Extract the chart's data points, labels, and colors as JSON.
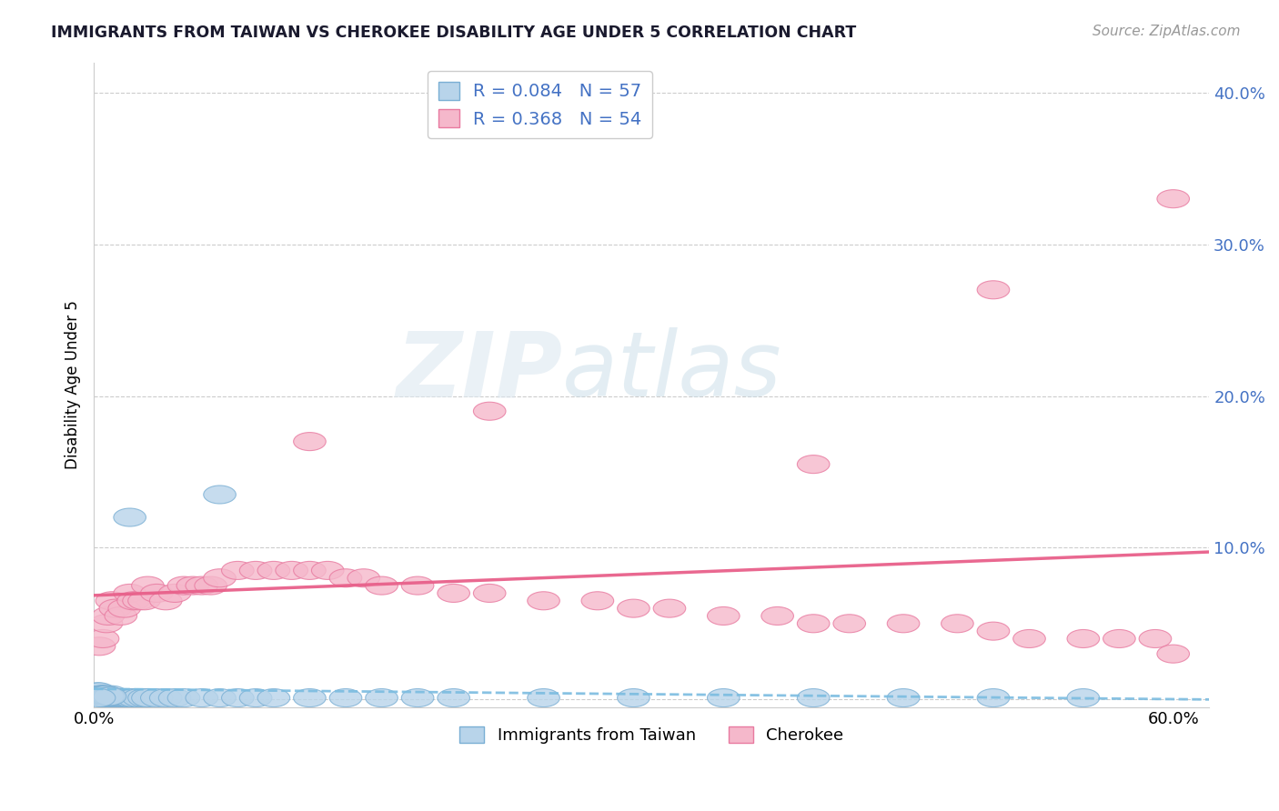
{
  "title": "IMMIGRANTS FROM TAIWAN VS CHEROKEE DISABILITY AGE UNDER 5 CORRELATION CHART",
  "source": "Source: ZipAtlas.com",
  "ylabel": "Disability Age Under 5",
  "legend_label1": "Immigrants from Taiwan",
  "legend_label2": "Cherokee",
  "r1": 0.084,
  "n1": 57,
  "r2": 0.368,
  "n2": 54,
  "xlim": [
    0.0,
    0.62
  ],
  "ylim": [
    -0.005,
    0.42
  ],
  "color_blue_fill": "#b8d4ea",
  "color_blue_edge": "#7aafd4",
  "color_pink_fill": "#f5b8cb",
  "color_pink_edge": "#e87aa0",
  "color_blue_line": "#7bbce0",
  "color_pink_line": "#e8608a",
  "background": "#ffffff",
  "taiwan_x": [
    0.002,
    0.003,
    0.004,
    0.005,
    0.006,
    0.006,
    0.007,
    0.007,
    0.008,
    0.009,
    0.01,
    0.01,
    0.011,
    0.012,
    0.013,
    0.014,
    0.015,
    0.016,
    0.017,
    0.018,
    0.019,
    0.02,
    0.022,
    0.025,
    0.028,
    0.03,
    0.035,
    0.04,
    0.045,
    0.05,
    0.06,
    0.07,
    0.08,
    0.09,
    0.1,
    0.12,
    0.14,
    0.16,
    0.18,
    0.2,
    0.25,
    0.3,
    0.35,
    0.4,
    0.45,
    0.5,
    0.55,
    0.003,
    0.004,
    0.005,
    0.006,
    0.007,
    0.008,
    0.009,
    0.02,
    0.07,
    0.003
  ],
  "taiwan_y": [
    0.005,
    0.005,
    0.003,
    0.003,
    0.003,
    0.001,
    0.002,
    0.001,
    0.002,
    0.002,
    0.003,
    0.001,
    0.001,
    0.001,
    0.001,
    0.001,
    0.001,
    0.001,
    0.001,
    0.001,
    0.001,
    0.001,
    0.001,
    0.001,
    0.001,
    0.001,
    0.001,
    0.001,
    0.001,
    0.001,
    0.001,
    0.001,
    0.001,
    0.001,
    0.001,
    0.001,
    0.001,
    0.001,
    0.001,
    0.001,
    0.001,
    0.001,
    0.001,
    0.001,
    0.001,
    0.001,
    0.001,
    0.003,
    0.003,
    0.003,
    0.003,
    0.003,
    0.002,
    0.002,
    0.12,
    0.135,
    0.001
  ],
  "cherokee_x": [
    0.003,
    0.005,
    0.007,
    0.008,
    0.01,
    0.012,
    0.015,
    0.017,
    0.02,
    0.022,
    0.025,
    0.028,
    0.03,
    0.035,
    0.04,
    0.045,
    0.05,
    0.055,
    0.06,
    0.065,
    0.07,
    0.08,
    0.09,
    0.1,
    0.11,
    0.12,
    0.13,
    0.14,
    0.15,
    0.16,
    0.18,
    0.2,
    0.22,
    0.25,
    0.28,
    0.3,
    0.32,
    0.35,
    0.38,
    0.4,
    0.42,
    0.45,
    0.48,
    0.5,
    0.52,
    0.55,
    0.57,
    0.59,
    0.6,
    0.12,
    0.22,
    0.4,
    0.5,
    0.6
  ],
  "cherokee_y": [
    0.035,
    0.04,
    0.05,
    0.055,
    0.065,
    0.06,
    0.055,
    0.06,
    0.07,
    0.065,
    0.065,
    0.065,
    0.075,
    0.07,
    0.065,
    0.07,
    0.075,
    0.075,
    0.075,
    0.075,
    0.08,
    0.085,
    0.085,
    0.085,
    0.085,
    0.085,
    0.085,
    0.08,
    0.08,
    0.075,
    0.075,
    0.07,
    0.07,
    0.065,
    0.065,
    0.06,
    0.06,
    0.055,
    0.055,
    0.05,
    0.05,
    0.05,
    0.05,
    0.045,
    0.04,
    0.04,
    0.04,
    0.04,
    0.03,
    0.17,
    0.19,
    0.155,
    0.27,
    0.33
  ]
}
